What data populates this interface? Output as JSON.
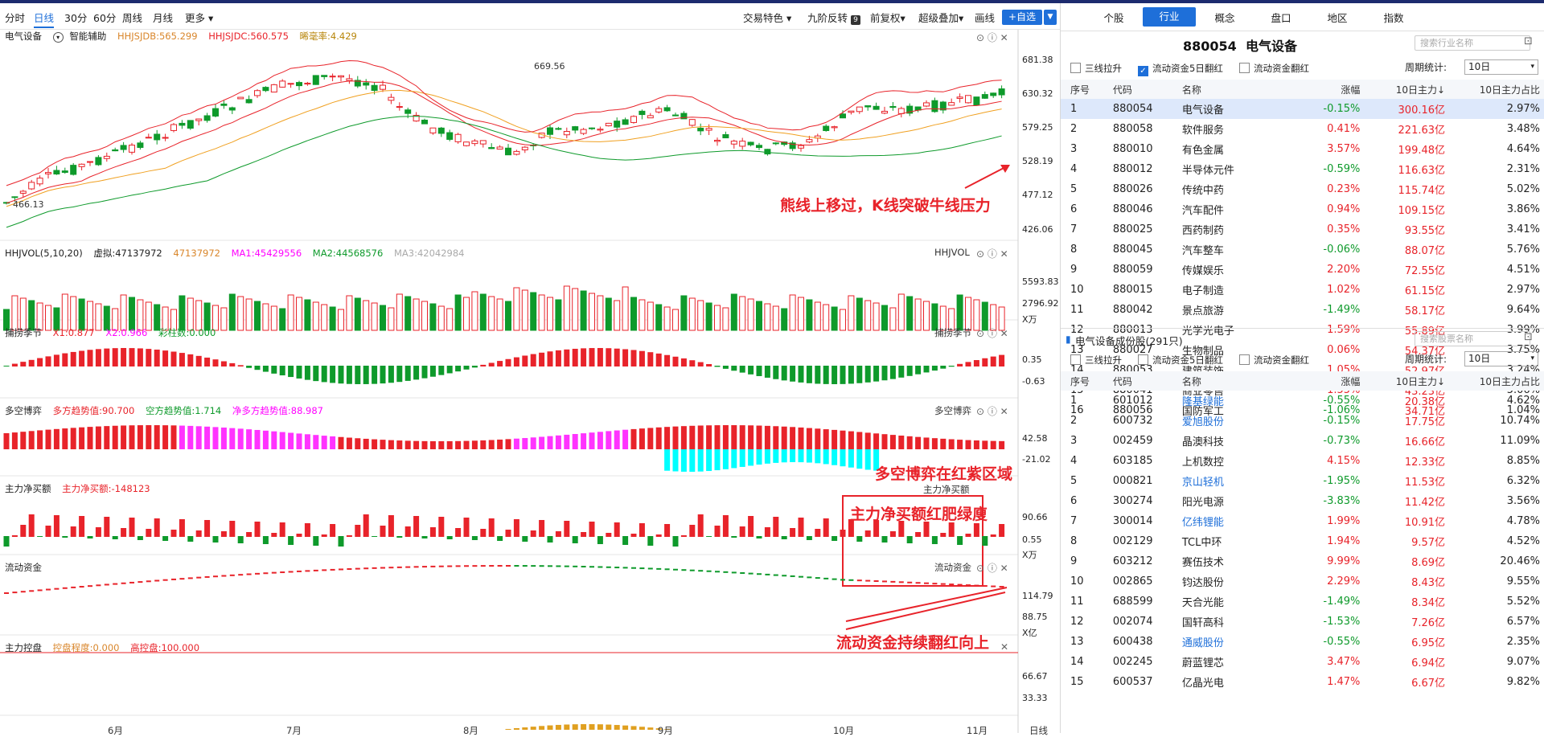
{
  "toolbar": {
    "left_items": [
      "分时",
      "日线",
      "30分",
      "60分",
      "周线",
      "月线",
      "更多"
    ],
    "active": "日线",
    "right_items": [
      "交易特色",
      "九阶反转",
      "前复权",
      "超级叠加",
      "画线"
    ],
    "add_label": "+自选"
  },
  "panels": {
    "main": {
      "name": "电气设备",
      "assist": "智能辅助",
      "hhdb": "HHJSJDB:565.299",
      "hhdc": "HHJSJDC:560.575",
      "ratio": "晞毫率:4.429",
      "axis": [
        "681.38",
        "630.32",
        "579.25",
        "528.19",
        "477.12",
        "426.06"
      ],
      "hi_label": "669.56",
      "lo_label": "466.13"
    },
    "vol": {
      "name": "HHJVOL(5,10,20)",
      "virtual": "虚拟:47137972",
      "v2": "47137972",
      "ma1": "MA1:45429556",
      "ma2": "MA2:44568576",
      "ma3": "MA3:42042984",
      "right_name": "HHJVOL",
      "axis": [
        "5593.83",
        "2796.92"
      ],
      "unit": "X万"
    },
    "catch": {
      "name": "捕捞季节",
      "x1": "X1:0.877",
      "x2": "X2:0.966",
      "bars": "彩柱数:0.000",
      "right_name": "捕捞季节",
      "axis": [
        "0.35",
        "-0.63"
      ]
    },
    "duokong": {
      "name": "多空博弈",
      "bull": "多方趋势值:90.700",
      "bear": "空方趋势值:1.714",
      "net": "净多方趋势值:88.987",
      "right_name": "多空博弈",
      "axis": [
        "42.58",
        "-21.02"
      ]
    },
    "mainbuy": {
      "name": "主力净买额",
      "value": "主力净买额:-148123",
      "right_name": "主力净买额",
      "axis": [
        "90.66",
        "0.55"
      ],
      "unit": "X万"
    },
    "flow": {
      "name": "流动资金",
      "right_name": "流动资金",
      "axis": [
        "114.79",
        "88.75"
      ],
      "unit": "X亿"
    },
    "control": {
      "name": "主力控盘",
      "degree": "控盘程度:0.000",
      "high": "高控盘:100.000",
      "axis": [
        "66.67",
        "33.33"
      ]
    }
  },
  "annotations": {
    "a1": "熊线上移过，K线突破牛线压力",
    "a2": "多空博弈在红紫区域",
    "a3": "主力净买额红肥绿廋",
    "a4": "流动资金持续翻红向上"
  },
  "xaxis": {
    "months": [
      "6月",
      "7月",
      "8月",
      "9月",
      "10月",
      "11月"
    ],
    "period": "日线"
  },
  "right": {
    "tabs": [
      "个股",
      "行业",
      "概念",
      "盘口",
      "地区",
      "指数"
    ],
    "active_tab": "行业",
    "title_code": "880054",
    "title_name": "电气设备",
    "search1": "搜索行业名称",
    "search2": "搜索股票名称",
    "filters": [
      "三线拉升",
      "流动资金5日翻红",
      "流动资金翻红"
    ],
    "period_label": "周期统计:",
    "period_value": "10日",
    "columns": [
      "序号",
      "代码",
      "名称",
      "涨幅",
      "10日主力↓",
      "10日主力占比"
    ],
    "industries": [
      [
        "1",
        "880054",
        "电气设备",
        "-0.15%",
        "300.16亿",
        "2.97%"
      ],
      [
        "2",
        "880058",
        "软件服务",
        "0.41%",
        "221.63亿",
        "3.48%"
      ],
      [
        "3",
        "880010",
        "有色金属",
        "3.57%",
        "199.48亿",
        "4.64%"
      ],
      [
        "4",
        "880012",
        "半导体元件",
        "-0.59%",
        "116.63亿",
        "2.31%"
      ],
      [
        "5",
        "880026",
        "传统中药",
        "0.23%",
        "115.74亿",
        "5.02%"
      ],
      [
        "6",
        "880046",
        "汽车配件",
        "0.94%",
        "109.15亿",
        "3.86%"
      ],
      [
        "7",
        "880025",
        "西药制药",
        "0.35%",
        "93.55亿",
        "3.41%"
      ],
      [
        "8",
        "880045",
        "汽车整车",
        "-0.06%",
        "88.07亿",
        "5.76%"
      ],
      [
        "9",
        "880059",
        "传媒娱乐",
        "2.20%",
        "72.55亿",
        "4.51%"
      ],
      [
        "10",
        "880015",
        "电子制造",
        "1.02%",
        "61.15亿",
        "2.97%"
      ],
      [
        "11",
        "880042",
        "景点旅游",
        "-1.49%",
        "58.17亿",
        "9.64%"
      ],
      [
        "12",
        "880013",
        "光学光电子",
        "1.59%",
        "55.89亿",
        "3.99%"
      ],
      [
        "13",
        "880027",
        "生物制品",
        "0.06%",
        "54.37亿",
        "3.75%"
      ],
      [
        "14",
        "880053",
        "建筑装饰",
        "1.05%",
        "52.97亿",
        "3.24%"
      ],
      [
        "15",
        "880041",
        "商业零售",
        "1.55%",
        "43.23亿",
        "5.06%"
      ],
      [
        "16",
        "880056",
        "国防军工",
        "-1.06%",
        "34.71亿",
        "1.04%"
      ]
    ],
    "constituents_title": "电气设备成份股(291只)",
    "stocks": [
      [
        "1",
        "601012",
        "隆基绿能",
        "-0.55%",
        "20.38亿",
        "4.62%"
      ],
      [
        "2",
        "600732",
        "爱旭股份",
        "-0.15%",
        "17.75亿",
        "10.74%"
      ],
      [
        "3",
        "002459",
        "晶澳科技",
        "-0.73%",
        "16.66亿",
        "11.09%"
      ],
      [
        "4",
        "603185",
        "上机数控",
        "4.15%",
        "12.33亿",
        "8.85%"
      ],
      [
        "5",
        "000821",
        "京山轻机",
        "-1.95%",
        "11.53亿",
        "6.32%"
      ],
      [
        "6",
        "300274",
        "阳光电源",
        "-3.83%",
        "11.42亿",
        "3.56%"
      ],
      [
        "7",
        "300014",
        "亿纬锂能",
        "1.99%",
        "10.91亿",
        "4.78%"
      ],
      [
        "8",
        "002129",
        "TCL中环",
        "1.94%",
        "9.57亿",
        "4.52%"
      ],
      [
        "9",
        "603212",
        "赛伍技术",
        "9.99%",
        "8.69亿",
        "20.46%"
      ],
      [
        "10",
        "002865",
        "钧达股份",
        "2.29%",
        "8.43亿",
        "9.55%"
      ],
      [
        "11",
        "688599",
        "天合光能",
        "-1.49%",
        "8.34亿",
        "5.52%"
      ],
      [
        "12",
        "002074",
        "国轩高科",
        "-1.53%",
        "7.26亿",
        "6.57%"
      ],
      [
        "13",
        "600438",
        "通威股份",
        "-0.55%",
        "6.95亿",
        "2.35%"
      ],
      [
        "14",
        "002245",
        "蔚蓝锂芯",
        "3.47%",
        "6.94亿",
        "9.07%"
      ],
      [
        "15",
        "600537",
        "亿晶光电",
        "1.47%",
        "6.67亿",
        "9.82%"
      ]
    ],
    "blue_stock_rows": [
      0,
      1,
      4,
      6,
      12
    ]
  },
  "colors": {
    "up": "#e8232a",
    "down": "#0e9a2b",
    "accent": "#1e6fd9",
    "magenta": "#ff00ff",
    "cyan": "#00ffff",
    "control": "#e0a020"
  }
}
